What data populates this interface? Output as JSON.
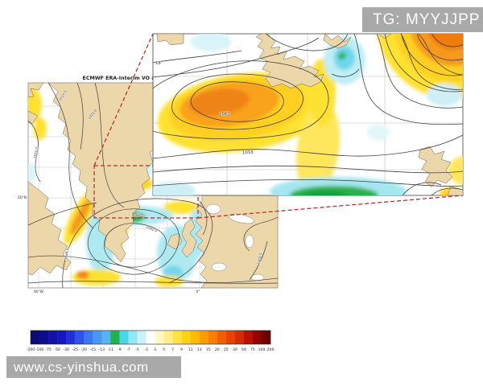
{
  "watermarks": {
    "top_right": "TG: MYYJJPP",
    "bottom_left": "www.cs-yinshua.com"
  },
  "figure": {
    "title": "ECMWF ERA-Interim VO at",
    "small_map": {
      "lat_label": "60°N",
      "lon_label_left": "60°W",
      "lon_label_right": "0°",
      "contour_labels": {
        "c1": "1014.0",
        "c2": "1020.0",
        "c3": "1010.0",
        "c4": "1022.0",
        "c5": "1020.0",
        "c6": "1026.0",
        "c7": "1008.0"
      }
    },
    "large_map": {
      "contour_labels": {
        "edge": "18",
        "low": "1010",
        "mid": "1018"
      }
    }
  },
  "colorbar": {
    "ticks": [
      "-200",
      "-100",
      "-75",
      "-50",
      "-30",
      "-25",
      "-20",
      "-15",
      "-13",
      "-11",
      "-9",
      "-7",
      "-5",
      "-3",
      "3",
      "5",
      "7",
      "9",
      "11",
      "13",
      "15",
      "20",
      "25",
      "30",
      "50",
      "75",
      "100",
      "200"
    ],
    "segment_colors": [
      "#0b0b73",
      "#0e0e8c",
      "#1212a6",
      "#1717c2",
      "#2230d8",
      "#2e53e8",
      "#3b78f0",
      "#4898f2",
      "#55b5f0",
      "#22b14c",
      "#49d6e8",
      "#93e6f2",
      "#c9f3f8",
      "#ffffff",
      "#fff8c4",
      "#ffef86",
      "#ffe345",
      "#ffd312",
      "#ffbb00",
      "#ff9d00",
      "#fb7e00",
      "#f25f00",
      "#e74400",
      "#d62a00",
      "#bb1000",
      "#970000",
      "#6d0000"
    ]
  },
  "colors": {
    "land": "#ecd7ab",
    "contour": "#3f3f3f",
    "grid": "#c3c3c3",
    "zoom_box": "#b92f2f",
    "watermark_bg": "#a9a9a9",
    "watermark_text": "#fdfdfd"
  }
}
